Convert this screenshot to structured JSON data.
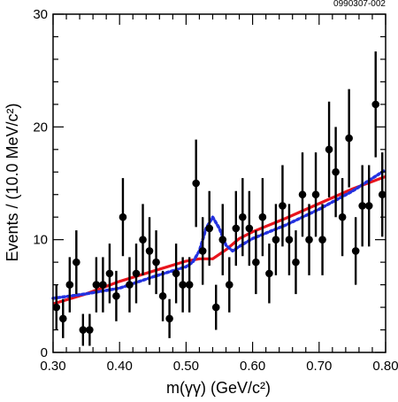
{
  "chart_data": {
    "type": "scatter",
    "id_label": "0990307-002",
    "xlabel": "m(γγ) (GeV/c²)",
    "ylabel": "Events / (10.0 MeV/c²)",
    "xlim": [
      0.3,
      0.8
    ],
    "ylim": [
      0,
      30
    ],
    "x_ticks": [
      "0.30",
      "0.40",
      "0.50",
      "0.60",
      "0.70",
      "0.80"
    ],
    "y_ticks": [
      "0",
      "10",
      "20",
      "30"
    ],
    "grid": false,
    "bin_width": 0.01,
    "series": [
      {
        "kind": "points_with_errors",
        "color": "#000000",
        "x": [
          0.305,
          0.315,
          0.325,
          0.335,
          0.345,
          0.355,
          0.365,
          0.375,
          0.385,
          0.395,
          0.405,
          0.415,
          0.425,
          0.435,
          0.445,
          0.455,
          0.465,
          0.475,
          0.485,
          0.495,
          0.505,
          0.515,
          0.525,
          0.535,
          0.545,
          0.555,
          0.565,
          0.575,
          0.585,
          0.595,
          0.605,
          0.615,
          0.625,
          0.635,
          0.645,
          0.655,
          0.665,
          0.675,
          0.685,
          0.695,
          0.705,
          0.715,
          0.725,
          0.735,
          0.745,
          0.755,
          0.765,
          0.775,
          0.785,
          0.795
        ],
        "y": [
          4,
          3,
          6,
          8,
          2,
          2,
          6,
          6,
          7,
          5,
          12,
          6,
          7,
          10,
          9,
          8,
          5,
          3,
          7,
          6,
          6,
          15,
          9,
          11,
          4,
          10,
          6,
          11,
          12,
          11,
          8,
          12,
          7,
          10,
          13,
          10,
          8,
          14,
          10,
          14,
          10,
          18,
          16,
          12,
          19,
          9,
          13,
          13,
          22,
          14
        ]
      },
      {
        "kind": "line",
        "color": "#e8141c",
        "style": "solid",
        "x": [
          0.3,
          0.35,
          0.4,
          0.45,
          0.5,
          0.52,
          0.54,
          0.56,
          0.58,
          0.6,
          0.65,
          0.7,
          0.75,
          0.8
        ],
        "y": [
          4.3,
          5.2,
          6.3,
          7.2,
          8.1,
          8.3,
          8.3,
          9.1,
          10.1,
          10.7,
          11.9,
          13.2,
          14.5,
          15.6
        ]
      },
      {
        "kind": "line",
        "color": "#2432e0",
        "style": "dotted",
        "x": [
          0.3,
          0.35,
          0.4,
          0.45,
          0.5,
          0.51,
          0.52,
          0.53,
          0.54,
          0.55,
          0.56,
          0.57,
          0.58,
          0.6,
          0.65,
          0.7,
          0.75,
          0.8
        ],
        "y": [
          4.8,
          5.2,
          5.7,
          6.7,
          7.6,
          8.0,
          9.0,
          11.0,
          12.0,
          11.0,
          9.5,
          9.0,
          9.4,
          10.1,
          11.3,
          12.7,
          14.3,
          16.2
        ]
      }
    ]
  }
}
